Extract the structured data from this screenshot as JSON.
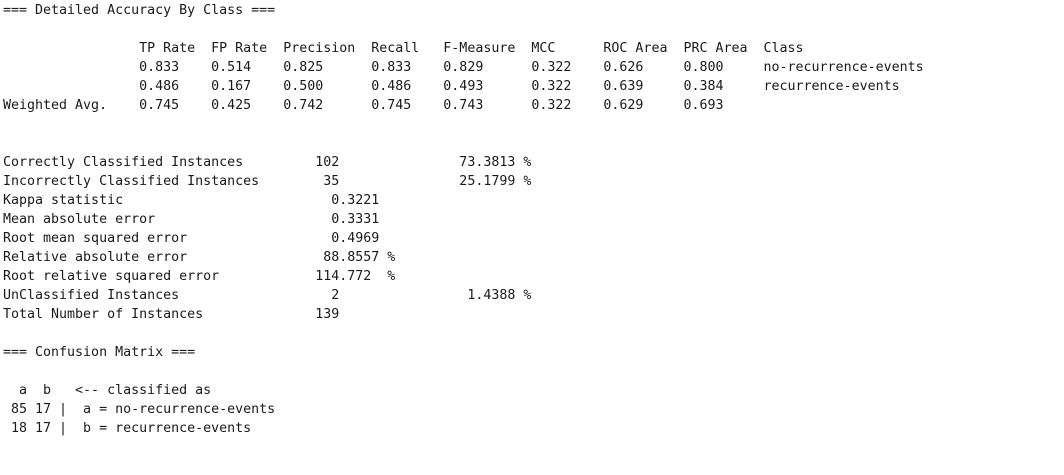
{
  "lines": [
    "=== Detailed Accuracy By Class ===",
    "",
    "                 TP Rate  FP Rate  Precision  Recall   F-Measure  MCC      ROC Area  PRC Area  Class",
    "                 0.833    0.514    0.825      0.833    0.829      0.322    0.626     0.800     no-recurrence-events",
    "                 0.486    0.167    0.500      0.486    0.493      0.322    0.639     0.384     recurrence-events",
    "Weighted Avg.    0.745    0.425    0.742      0.745    0.743      0.322    0.629     0.693",
    "",
    "",
    "Correctly Classified Instances         102               73.3813 %",
    "Incorrectly Classified Instances        35               25.1799 %",
    "Kappa statistic                          0.3221",
    "Mean absolute error                      0.3331",
    "Root mean squared error                  0.4969",
    "Relative absolute error                 88.8557 %",
    "Root relative squared error            114.772  %",
    "UnClassified Instances                   2                1.4388 %",
    "Total Number of Instances              139",
    "",
    "=== Confusion Matrix ===",
    "",
    "  a  b   <-- classified as",
    " 85 17 |  a = no-recurrence-events",
    " 18 17 |  b = recurrence-events"
  ]
}
